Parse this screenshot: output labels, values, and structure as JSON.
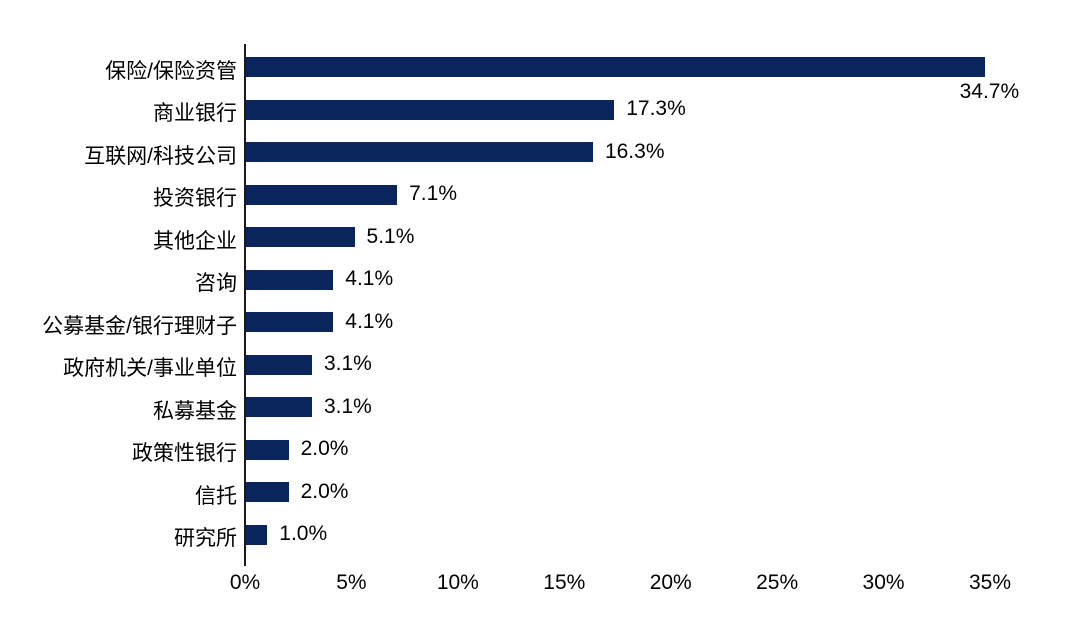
{
  "chart_data": {
    "type": "bar",
    "orientation": "horizontal",
    "categories": [
      "保险/保险资管",
      "商业银行",
      "互联网/科技公司",
      "投资银行",
      "其他企业",
      "咨询",
      "公募基金/银行理财子",
      "政府机关/事业单位",
      "私募基金",
      "政策性银行",
      "信托",
      "研究所"
    ],
    "values": [
      34.7,
      17.3,
      16.3,
      7.1,
      5.1,
      4.1,
      4.1,
      3.1,
      3.1,
      2.0,
      2.0,
      1.0
    ],
    "value_labels": [
      "34.7%",
      "17.3%",
      "16.3%",
      "7.1%",
      "5.1%",
      "4.1%",
      "4.1%",
      "3.1%",
      "3.1%",
      "2.0%",
      "2.0%",
      "1.0%"
    ],
    "first_value_label_position": "below-bar-end",
    "x_tick_labels": [
      "0%",
      "5%",
      "10%",
      "15%",
      "20%",
      "25%",
      "30%",
      "35%"
    ],
    "x_tick_values": [
      0,
      5,
      10,
      15,
      20,
      25,
      30,
      35
    ],
    "xlim": [
      0,
      35
    ],
    "grid": false,
    "legend_position": "none",
    "bar_color": "#0A255C",
    "axis_color": "#1a1a1a",
    "text_color": "#000000"
  }
}
